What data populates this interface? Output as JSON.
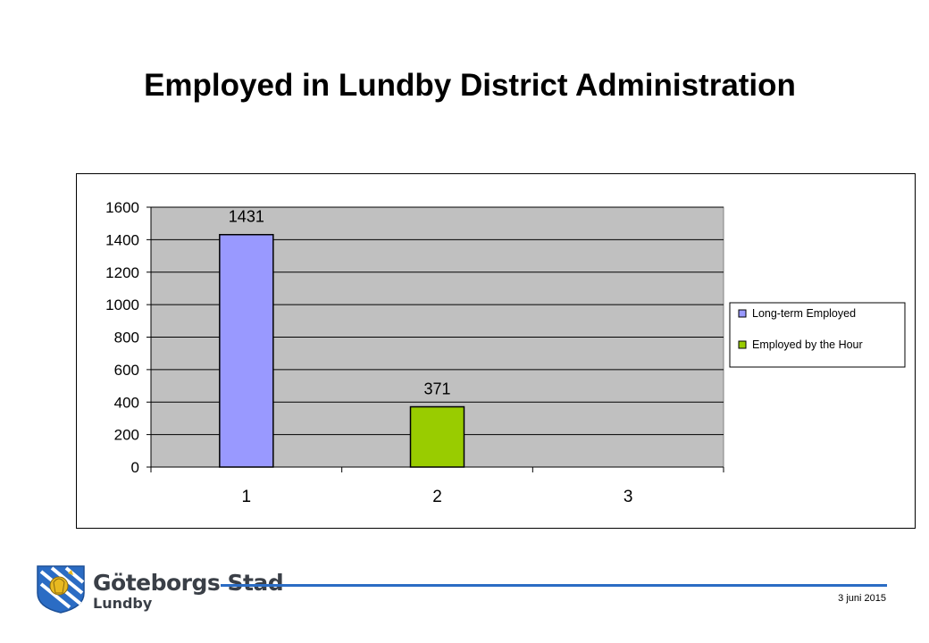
{
  "slide": {
    "title": "Employed in Lundby District Administration",
    "date": "3 juni 2015"
  },
  "logo": {
    "name": "Göteborgs Stad",
    "subtitle": "Lundby",
    "icon": "goteborg-lion-crest-icon"
  },
  "colors": {
    "plot_background": "#c0c0c0",
    "long_term": "#9999ff",
    "by_hour": "#99cc00",
    "footer_line": "#2b6cc4"
  },
  "chart_data": {
    "type": "bar",
    "categories": [
      "1",
      "2",
      "3"
    ],
    "series": [
      {
        "name": "Long-term Employed",
        "values": [
          1431,
          null,
          null
        ],
        "color": "#9999ff"
      },
      {
        "name": "Employed by the Hour",
        "values": [
          null,
          371,
          null
        ],
        "color": "#99cc00"
      }
    ],
    "data_labels": [
      "1431",
      "371"
    ],
    "ylim": [
      0,
      1600
    ],
    "yticks": [
      0,
      200,
      400,
      600,
      800,
      1000,
      1200,
      1400,
      1600
    ],
    "grid": true,
    "legend_position": "right",
    "title": "",
    "xlabel": "",
    "ylabel": ""
  }
}
